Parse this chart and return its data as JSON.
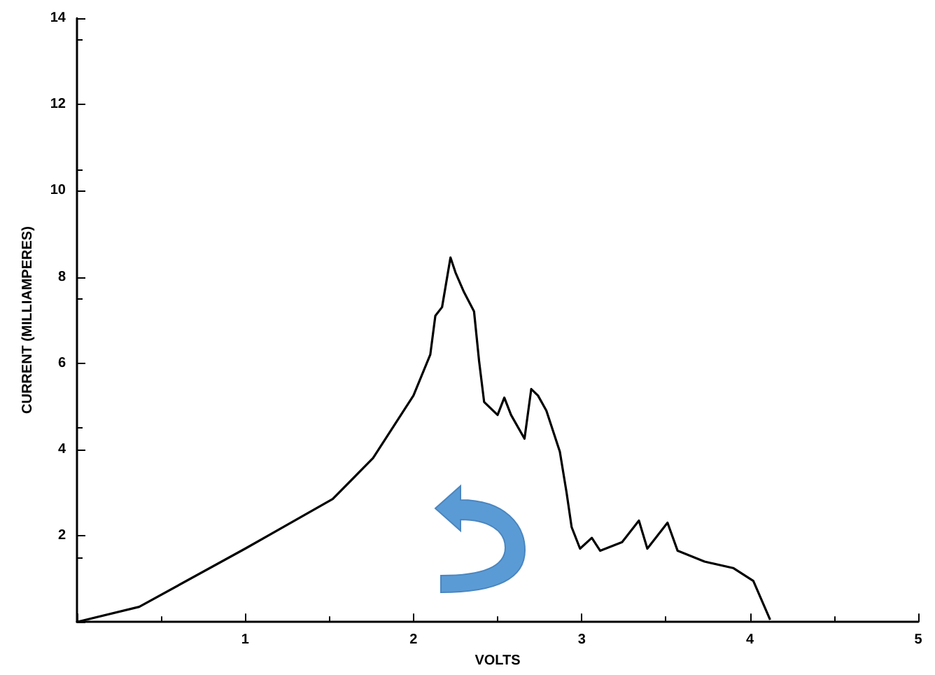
{
  "chart_data": {
    "type": "line",
    "xlabel": "VOLTS",
    "ylabel": "CURRENT (MILLIAMPERES)",
    "xlim": [
      0,
      5
    ],
    "ylim": [
      0,
      14
    ],
    "xticks": [
      {
        "value": 0,
        "label": null
      },
      1,
      2,
      3,
      4,
      5
    ],
    "yticks": [
      {
        "value": 0,
        "label": null
      },
      2,
      4,
      6,
      8,
      10,
      12,
      14
    ],
    "grid": false,
    "marker": "none",
    "line_style": "solid",
    "series": [
      {
        "color": "#000000",
        "x": [
          0,
          0.37,
          1.0,
          1.52,
          1.76,
          2.0,
          2.1,
          2.13,
          2.17,
          2.22,
          2.25,
          2.3,
          2.36,
          2.39,
          2.42,
          2.5,
          2.54,
          2.58,
          2.66,
          2.7,
          2.74,
          2.79,
          2.87,
          2.91,
          2.94,
          2.99,
          3.06,
          3.11,
          3.24,
          3.34,
          3.39,
          3.51,
          3.57,
          3.73,
          3.9,
          4.02,
          4.12
        ],
        "values": [
          0,
          0.35,
          1.7,
          2.85,
          3.8,
          5.25,
          6.2,
          7.1,
          7.3,
          8.45,
          8.1,
          7.65,
          7.2,
          6.05,
          5.1,
          4.8,
          5.2,
          4.8,
          4.25,
          5.4,
          5.25,
          4.9,
          3.95,
          3.0,
          2.2,
          1.7,
          1.95,
          1.65,
          1.85,
          2.35,
          1.7,
          2.3,
          1.65,
          1.4,
          1.25,
          0.95,
          0.05
        ]
      }
    ]
  }
}
